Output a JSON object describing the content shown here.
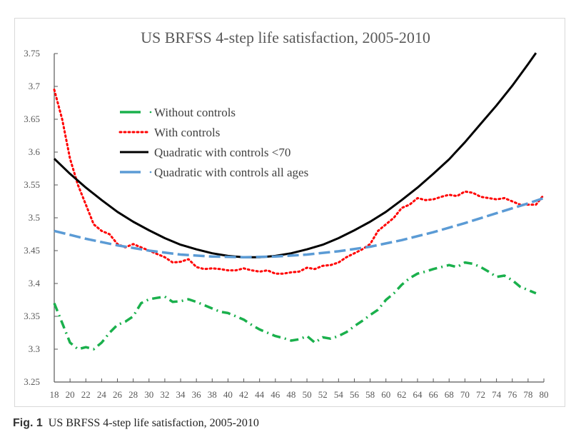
{
  "caption": {
    "label": "Fig. 1",
    "text": "US BRFSS 4-step life satisfaction, 2005-2010"
  },
  "chart_data": {
    "type": "line",
    "title": "US BRFSS 4-step life satisfaction, 2005-2010",
    "xlabel": "",
    "ylabel": "",
    "xlim": [
      18,
      80
    ],
    "ylim": [
      3.25,
      3.75
    ],
    "xticks": [
      18,
      20,
      22,
      24,
      26,
      28,
      30,
      32,
      34,
      36,
      38,
      40,
      42,
      44,
      46,
      48,
      50,
      52,
      54,
      56,
      58,
      60,
      62,
      64,
      66,
      68,
      70,
      72,
      74,
      76,
      78,
      80
    ],
    "yticks": [
      "3.25",
      "3.3",
      "3.35",
      "3.4",
      "3.45",
      "3.5",
      "3.55",
      "3.6",
      "3.65",
      "3.7",
      "3.75"
    ],
    "grid": false,
    "legend": "upper-left inside",
    "series": [
      {
        "name": "Without controls",
        "color": "#1ab04c",
        "style": "dash-dot",
        "x": [
          18,
          19,
          20,
          21,
          22,
          23,
          24,
          25,
          26,
          27,
          28,
          29,
          30,
          31,
          32,
          33,
          34,
          35,
          36,
          37,
          38,
          39,
          40,
          41,
          42,
          43,
          44,
          45,
          46,
          47,
          48,
          49,
          50,
          51,
          52,
          53,
          54,
          55,
          56,
          57,
          58,
          59,
          60,
          61,
          62,
          63,
          64,
          65,
          66,
          67,
          68,
          69,
          70,
          71,
          72,
          73,
          74,
          75,
          76,
          77,
          78,
          79
        ],
        "y": [
          3.37,
          3.34,
          3.31,
          3.3,
          3.303,
          3.3,
          3.31,
          3.325,
          3.337,
          3.342,
          3.35,
          3.37,
          3.376,
          3.378,
          3.38,
          3.372,
          3.373,
          3.376,
          3.372,
          3.367,
          3.362,
          3.357,
          3.355,
          3.35,
          3.345,
          3.337,
          3.33,
          3.325,
          3.32,
          3.317,
          3.313,
          3.315,
          3.32,
          3.31,
          3.318,
          3.316,
          3.32,
          3.326,
          3.335,
          3.343,
          3.352,
          3.36,
          3.375,
          3.385,
          3.398,
          3.408,
          3.415,
          3.418,
          3.422,
          3.425,
          3.428,
          3.425,
          3.432,
          3.43,
          3.425,
          3.418,
          3.41,
          3.412,
          3.405,
          3.395,
          3.39,
          3.385
        ]
      },
      {
        "name": "With controls",
        "color": "#ff0000",
        "style": "dotted",
        "x": [
          18,
          19,
          20,
          21,
          22,
          23,
          24,
          25,
          26,
          27,
          28,
          29,
          30,
          31,
          32,
          33,
          34,
          35,
          36,
          37,
          38,
          39,
          40,
          41,
          42,
          43,
          44,
          45,
          46,
          47,
          48,
          49,
          50,
          51,
          52,
          53,
          54,
          55,
          56,
          57,
          58,
          59,
          60,
          61,
          62,
          63,
          64,
          65,
          66,
          67,
          68,
          69,
          70,
          71,
          72,
          73,
          74,
          75,
          76,
          77,
          78,
          79,
          80
        ],
        "y": [
          3.695,
          3.65,
          3.59,
          3.55,
          3.52,
          3.49,
          3.48,
          3.475,
          3.46,
          3.455,
          3.46,
          3.455,
          3.45,
          3.445,
          3.44,
          3.432,
          3.433,
          3.437,
          3.425,
          3.422,
          3.423,
          3.422,
          3.42,
          3.42,
          3.423,
          3.42,
          3.418,
          3.42,
          3.415,
          3.415,
          3.417,
          3.418,
          3.424,
          3.422,
          3.427,
          3.428,
          3.432,
          3.44,
          3.446,
          3.452,
          3.46,
          3.48,
          3.49,
          3.5,
          3.515,
          3.52,
          3.53,
          3.527,
          3.528,
          3.532,
          3.535,
          3.533,
          3.54,
          3.538,
          3.532,
          3.53,
          3.528,
          3.53,
          3.525,
          3.52,
          3.52,
          3.52,
          3.535
        ]
      },
      {
        "name": "Quadratic with controls <70",
        "color": "#000000",
        "style": "solid",
        "x": [
          18,
          20,
          22,
          24,
          26,
          28,
          30,
          32,
          34,
          36,
          38,
          40,
          42,
          44,
          46,
          48,
          50,
          52,
          54,
          56,
          58,
          60,
          62,
          64,
          66,
          68,
          70,
          72,
          74,
          76,
          78,
          79
        ],
        "y": [
          3.59,
          3.567,
          3.546,
          3.527,
          3.509,
          3.494,
          3.481,
          3.469,
          3.459,
          3.452,
          3.446,
          3.442,
          3.44,
          3.44,
          3.442,
          3.446,
          3.452,
          3.459,
          3.469,
          3.481,
          3.494,
          3.509,
          3.527,
          3.546,
          3.567,
          3.589,
          3.615,
          3.643,
          3.671,
          3.701,
          3.734,
          3.751
        ]
      },
      {
        "name": "Quadratic with controls all ages",
        "color": "#5b9bd5",
        "style": "dashed",
        "x": [
          18,
          22,
          26,
          30,
          34,
          38,
          42,
          46,
          50,
          54,
          58,
          62,
          66,
          70,
          74,
          78,
          80
        ],
        "y": [
          3.48,
          3.468,
          3.458,
          3.45,
          3.444,
          3.441,
          3.44,
          3.441,
          3.444,
          3.449,
          3.456,
          3.466,
          3.478,
          3.492,
          3.507,
          3.522,
          3.53
        ]
      }
    ]
  }
}
